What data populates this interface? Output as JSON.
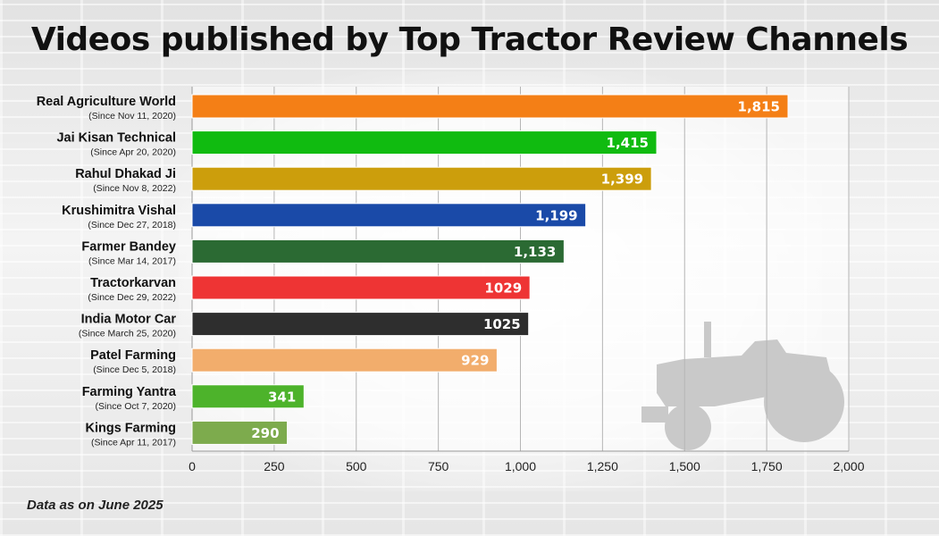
{
  "title": "Videos published by Top Tractor Review Channels",
  "footnote": "Data as on June 2025",
  "tractor_icon": "tractor-silhouette-icon",
  "chart_data": {
    "type": "bar",
    "orientation": "horizontal",
    "title": "Videos published by Top Tractor Review Channels",
    "xlabel": "",
    "ylabel": "",
    "xlim": [
      0,
      2000
    ],
    "xticks": [
      0,
      250,
      500,
      750,
      1000,
      1250,
      1500,
      1750,
      2000
    ],
    "xtick_labels": [
      "0",
      "250",
      "500",
      "750",
      "1,000",
      "1,250",
      "1,500",
      "1,750",
      "2,000"
    ],
    "grid": true,
    "categories": [
      {
        "name": "Real Agriculture World",
        "since": "(Since Nov 11, 2020)",
        "value": 1815,
        "label": "1,815",
        "color": "#f47f16"
      },
      {
        "name": "Jai Kisan Technical",
        "since": "(Since Apr 20, 2020)",
        "value": 1415,
        "label": "1,415",
        "color": "#10bb10"
      },
      {
        "name": "Rahul Dhakad Ji",
        "since": "(Since Nov 8, 2022)",
        "value": 1399,
        "label": "1,399",
        "color": "#cc9e0c"
      },
      {
        "name": "Krushimitra Vishal",
        "since": "(Since Dec 27, 2018)",
        "value": 1199,
        "label": "1,199",
        "color": "#1a4aa8"
      },
      {
        "name": "Farmer Bandey",
        "since": "(Since Mar 14, 2017)",
        "value": 1133,
        "label": "1,133",
        "color": "#2b6a33"
      },
      {
        "name": "Tractorkarvan",
        "since": "(Since Dec 29, 2022)",
        "value": 1029,
        "label": "1029",
        "color": "#ee3434"
      },
      {
        "name": "India Motor Car",
        "since": "(Since March 25, 2020)",
        "value": 1025,
        "label": "1025",
        "color": "#2e2e2e"
      },
      {
        "name": "Patel Farming",
        "since": "(Since Dec 5, 2018)",
        "value": 929,
        "label": "929",
        "color": "#f2ad6c"
      },
      {
        "name": "Farming Yantra",
        "since": "(Since Oct 7, 2020)",
        "value": 341,
        "label": "341",
        "color": "#4db32b"
      },
      {
        "name": "Kings Farming",
        "since": "(Since Apr 11, 2017)",
        "value": 290,
        "label": "290",
        "color": "#7dab4d"
      }
    ]
  }
}
